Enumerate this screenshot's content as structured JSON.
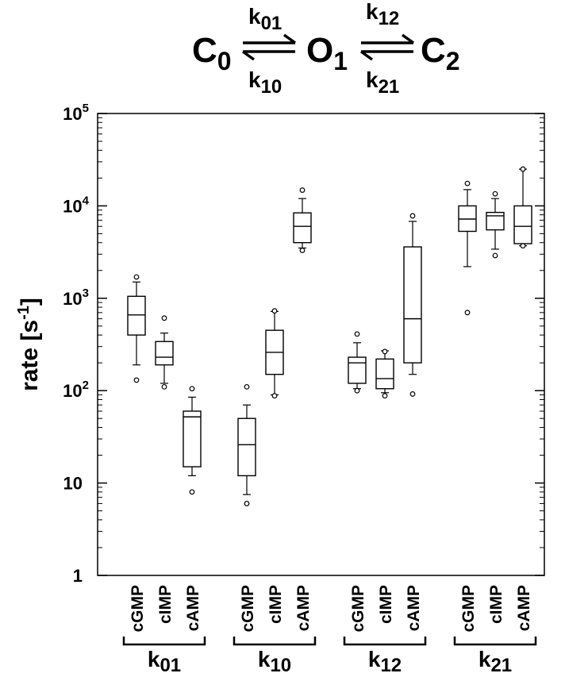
{
  "scheme": {
    "states": [
      "C",
      "O",
      "C"
    ],
    "state_subs": [
      "0",
      "1",
      "2"
    ],
    "rates": [
      {
        "base": "k",
        "sub": "01"
      },
      {
        "base": "k",
        "sub": "10"
      },
      {
        "base": "k",
        "sub": "12"
      },
      {
        "base": "k",
        "sub": "21"
      }
    ]
  },
  "chart_data": {
    "type": "box",
    "title": "",
    "ylabel": "rate [s",
    "ylabel_sup": "-1",
    "ylabel_close": "]",
    "yscale": "log",
    "ylim": [
      1,
      100000
    ],
    "yticks": [
      {
        "value": 1,
        "label": "1"
      },
      {
        "value": 10,
        "label": "10"
      },
      {
        "value": 100,
        "base": "10",
        "exp": "2"
      },
      {
        "value": 1000,
        "base": "10",
        "exp": "3"
      },
      {
        "value": 10000,
        "base": "10",
        "exp": "4"
      },
      {
        "value": 100000,
        "base": "10",
        "exp": "5"
      }
    ],
    "groups": [
      {
        "base": "k",
        "sub": "01"
      },
      {
        "base": "k",
        "sub": "10"
      },
      {
        "base": "k",
        "sub": "12"
      },
      {
        "base": "k",
        "sub": "21"
      }
    ],
    "categories": [
      "cGMP",
      "cIMP",
      "cAMP"
    ],
    "boxes": [
      {
        "group": 0,
        "category": "cGMP",
        "whisker_low": 190,
        "q1": 400,
        "median": 660,
        "q3": 1050,
        "whisker_high": 1500,
        "outliers": [
          130,
          1700
        ]
      },
      {
        "group": 0,
        "category": "cIMP",
        "whisker_low": 120,
        "q1": 190,
        "median": 230,
        "q3": 340,
        "whisker_high": 420,
        "outliers": [
          110,
          610
        ]
      },
      {
        "group": 0,
        "category": "cAMP",
        "whisker_low": 12,
        "q1": 15,
        "median": 52,
        "q3": 60,
        "whisker_high": 85,
        "outliers": [
          8,
          105
        ]
      },
      {
        "group": 1,
        "category": "cGMP",
        "whisker_low": 7.5,
        "q1": 12,
        "median": 26,
        "q3": 50,
        "whisker_high": 70,
        "outliers": [
          6,
          110
        ]
      },
      {
        "group": 1,
        "category": "cIMP",
        "whisker_low": 90,
        "q1": 150,
        "median": 260,
        "q3": 450,
        "whisker_high": 720,
        "outliers": [
          88,
          730
        ]
      },
      {
        "group": 1,
        "category": "cAMP",
        "whisker_low": 3500,
        "q1": 4000,
        "median": 6000,
        "q3": 8400,
        "whisker_high": 12000,
        "outliers": [
          3300,
          14800
        ]
      },
      {
        "group": 2,
        "category": "cGMP",
        "whisker_low": 105,
        "q1": 120,
        "median": 200,
        "q3": 230,
        "whisker_high": 330,
        "outliers": [
          100,
          410
        ]
      },
      {
        "group": 2,
        "category": "cIMP",
        "whisker_low": 95,
        "q1": 105,
        "median": 135,
        "q3": 220,
        "whisker_high": 270,
        "outliers": [
          88,
          265
        ]
      },
      {
        "group": 2,
        "category": "cAMP",
        "whisker_low": 150,
        "q1": 200,
        "median": 600,
        "q3": 3600,
        "whisker_high": 6800,
        "outliers": [
          92,
          7800
        ]
      },
      {
        "group": 3,
        "category": "cGMP",
        "whisker_low": 2200,
        "q1": 5300,
        "median": 7200,
        "q3": 10000,
        "whisker_high": 15000,
        "outliers": [
          700,
          17500
        ]
      },
      {
        "group": 3,
        "category": "cIMP",
        "whisker_low": 3400,
        "q1": 5500,
        "median": 7800,
        "q3": 8500,
        "whisker_high": 12000,
        "outliers": [
          2900,
          13500
        ]
      },
      {
        "group": 3,
        "category": "cAMP",
        "whisker_low": 3700,
        "q1": 3900,
        "median": 6000,
        "q3": 10000,
        "whisker_high": 25000,
        "outliers": [
          3700,
          25000
        ]
      }
    ]
  }
}
